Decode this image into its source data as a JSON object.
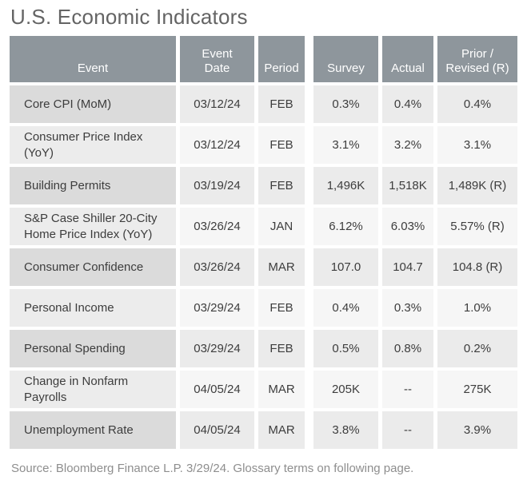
{
  "page": {
    "title": "U.S. Economic Indicators",
    "source_note": "Source: Bloomberg Finance L.P. 3/29/24. Glossary terms on following page."
  },
  "colors": {
    "header_bg": "#8E969C",
    "header_text": "#FFFFFF",
    "dark_row_event_bg": "#DBDBDB",
    "dark_row_cell_bg": "#EBEBEB",
    "light_row_event_bg": "#ECECEC",
    "light_row_cell_bg": "#F6F6F6",
    "cell_text": "#3D3D3D",
    "title_text": "#646464",
    "source_text": "#8E8E8E"
  },
  "table": {
    "headers": {
      "event": "Event",
      "date": "Event\nDate",
      "period": "Period",
      "survey": "Survey",
      "actual": "Actual",
      "prior": "Prior /\nRevised (R)"
    },
    "rows": [
      {
        "event": "Core CPI (MoM)",
        "date": "03/12/24",
        "period": "FEB",
        "survey": "0.3%",
        "actual": "0.4%",
        "prior": "0.4%"
      },
      {
        "event": "Consumer Price Index (YoY)",
        "date": "03/12/24",
        "period": "FEB",
        "survey": "3.1%",
        "actual": "3.2%",
        "prior": "3.1%"
      },
      {
        "event": "Building Permits",
        "date": "03/19/24",
        "period": "FEB",
        "survey": "1,496K",
        "actual": "1,518K",
        "prior": "1,489K (R)"
      },
      {
        "event": "S&P Case Shiller 20-City Home Price Index (YoY)",
        "date": "03/26/24",
        "period": "JAN",
        "survey": "6.12%",
        "actual": "6.03%",
        "prior": "5.57% (R)"
      },
      {
        "event": "Consumer Confidence",
        "date": "03/26/24",
        "period": "MAR",
        "survey": "107.0",
        "actual": "104.7",
        "prior": "104.8 (R)"
      },
      {
        "event": "Personal Income",
        "date": "03/29/24",
        "period": "FEB",
        "survey": "0.4%",
        "actual": "0.3%",
        "prior": "1.0%"
      },
      {
        "event": "Personal Spending",
        "date": "03/29/24",
        "period": "FEB",
        "survey": "0.5%",
        "actual": "0.8%",
        "prior": "0.2%"
      },
      {
        "event": "Change in Nonfarm Payrolls",
        "date": "04/05/24",
        "period": "MAR",
        "survey": "205K",
        "actual": "--",
        "prior": "275K"
      },
      {
        "event": "Unemployment Rate",
        "date": "04/05/24",
        "period": "MAR",
        "survey": "3.8%",
        "actual": "--",
        "prior": "3.9%"
      }
    ]
  }
}
